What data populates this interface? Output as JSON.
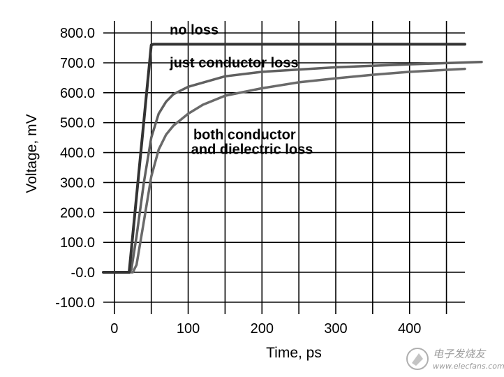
{
  "chart_data": {
    "type": "line",
    "xlabel": "Time, ps",
    "ylabel": "Voltage, mV",
    "xlim": [
      -15,
      475
    ],
    "ylim": [
      -140,
      840
    ],
    "x_ticks": [
      0,
      100,
      200,
      300,
      400
    ],
    "x_tick_labels": [
      "0",
      "100",
      "200",
      "300",
      "400"
    ],
    "y_ticks": [
      800,
      700,
      600,
      500,
      400,
      300,
      200,
      100,
      0,
      -100
    ],
    "y_tick_labels": [
      "800.0",
      "700.0",
      "600.0",
      "500.0",
      "400.0",
      "300.0",
      "200.0",
      "100.0",
      "-0.0",
      "-100.0"
    ],
    "grid": true,
    "series": [
      {
        "name": "no loss",
        "color": "#333333",
        "x": [
          -15,
          20,
          50,
          53,
          100,
          200,
          300,
          400,
          475
        ],
        "y": [
          0,
          0,
          760,
          762,
          762,
          762,
          762,
          762,
          762
        ]
      },
      {
        "name": "just conductor loss",
        "color": "#606060",
        "x": [
          -15,
          20,
          23,
          30,
          40,
          50,
          60,
          70,
          80,
          100,
          150,
          200,
          300,
          400,
          500
        ],
        "y": [
          0,
          0,
          10,
          120,
          300,
          450,
          530,
          570,
          595,
          620,
          655,
          670,
          685,
          695,
          703
        ]
      },
      {
        "name": "both conductor and dielectric loss",
        "color": "#6a6a6a",
        "x": [
          -15,
          25,
          30,
          40,
          50,
          60,
          70,
          80,
          100,
          120,
          150,
          200,
          250,
          300,
          350,
          400,
          475
        ],
        "y": [
          0,
          0,
          25,
          170,
          320,
          410,
          460,
          490,
          530,
          560,
          590,
          615,
          635,
          648,
          660,
          670,
          680
        ]
      }
    ],
    "annotations": [
      {
        "text": "no loss",
        "x": 75,
        "y": 795
      },
      {
        "text": "just conductor loss",
        "x": 75,
        "y": 685
      },
      {
        "text": "both conductor",
        "x": 107,
        "y": 445
      },
      {
        "text": "and dielectric loss",
        "x": 104,
        "y": 395
      }
    ]
  },
  "watermark": {
    "text": "电子发烧友",
    "sub": "www.elecfans.com"
  }
}
